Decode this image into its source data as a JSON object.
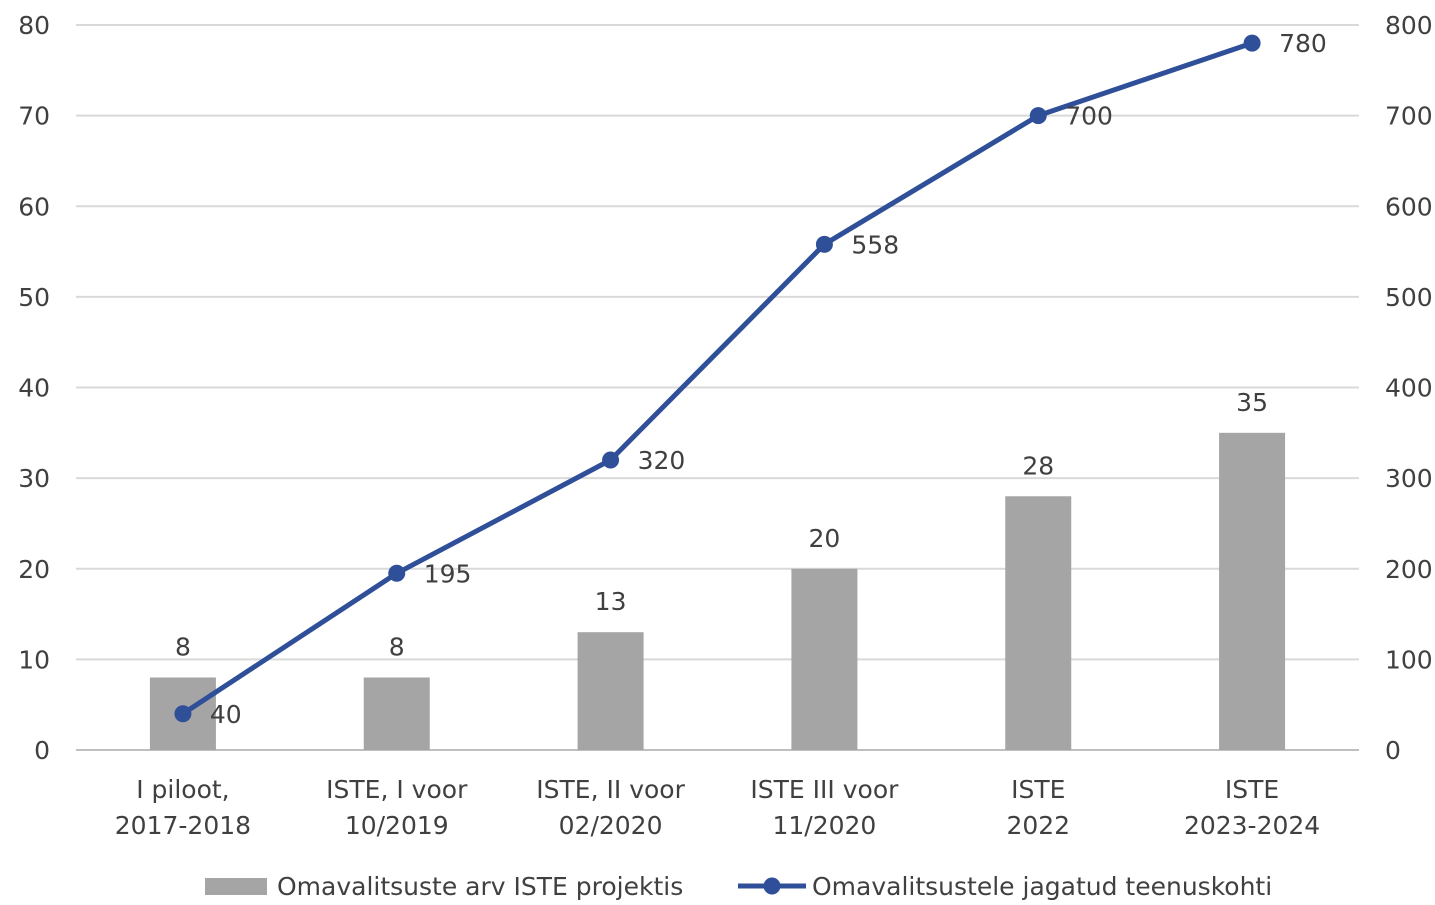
{
  "chart_data": {
    "type": "bar",
    "categories": [
      [
        "I piloot,",
        "2017-2018"
      ],
      [
        "ISTE, I voor",
        "10/2019"
      ],
      [
        "ISTE, II voor",
        "02/2020"
      ],
      [
        "ISTE III voor",
        "11/2020"
      ],
      [
        "ISTE",
        "2022"
      ],
      [
        "ISTE",
        "2023-2024"
      ]
    ],
    "series": [
      {
        "name": "Omavalitsuste arv ISTE projektis",
        "type": "bar",
        "axis": "left",
        "values": [
          8,
          8,
          13,
          20,
          28,
          35
        ],
        "labels": [
          "8",
          "8",
          "13",
          "20",
          "28",
          "35"
        ],
        "color": "#a5a5a5"
      },
      {
        "name": "Omavalitsustele jagatud teenuskohti",
        "type": "line",
        "axis": "right",
        "values": [
          40,
          195,
          320,
          558,
          700,
          780
        ],
        "labels": [
          "40",
          "195",
          "320",
          "558",
          "700",
          "780"
        ],
        "color": "#2f4f99"
      }
    ],
    "y_left": {
      "min": 0,
      "max": 80,
      "ticks": [
        "0",
        "10",
        "20",
        "30",
        "40",
        "50",
        "60",
        "70",
        "80"
      ]
    },
    "y_right": {
      "min": 0,
      "max": 800,
      "ticks": [
        "0",
        "100",
        "200",
        "300",
        "400",
        "500",
        "600",
        "700",
        "800"
      ]
    },
    "grid": true,
    "legend_position": "bottom",
    "gridline_color": "#d9d9d9"
  }
}
